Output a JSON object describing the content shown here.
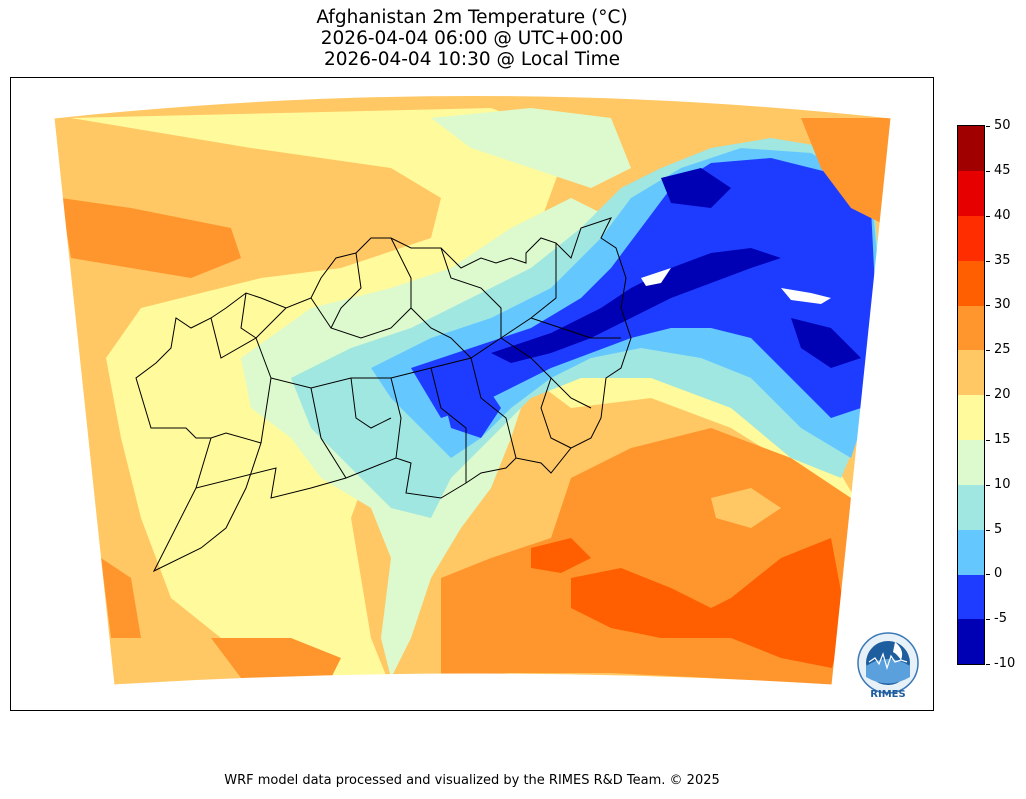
{
  "title": {
    "line1": "Afghanistan 2m Temperature (°C)",
    "line2": "2026-04-04 06:00 @ UTC+00:00",
    "line3": "2026-04-04 10:30 @ Local Time"
  },
  "colorbar": {
    "levels": [
      "-10",
      "-5",
      "0",
      "5",
      "10",
      "15",
      "20",
      "25",
      "30",
      "35",
      "40",
      "45",
      "50"
    ],
    "colors": [
      "#0000b4",
      "#1e3cff",
      "#64c8ff",
      "#a0e6e1",
      "#dcfacd",
      "#fffa9b",
      "#ffc864",
      "#ff962d",
      "#ff5f00",
      "#ff2d00",
      "#e60000",
      "#a00000"
    ]
  },
  "logo": {
    "text": "RIMES"
  },
  "credit": "WRF model data processed and visualized by the RIMES R&D Team. © 2025"
}
